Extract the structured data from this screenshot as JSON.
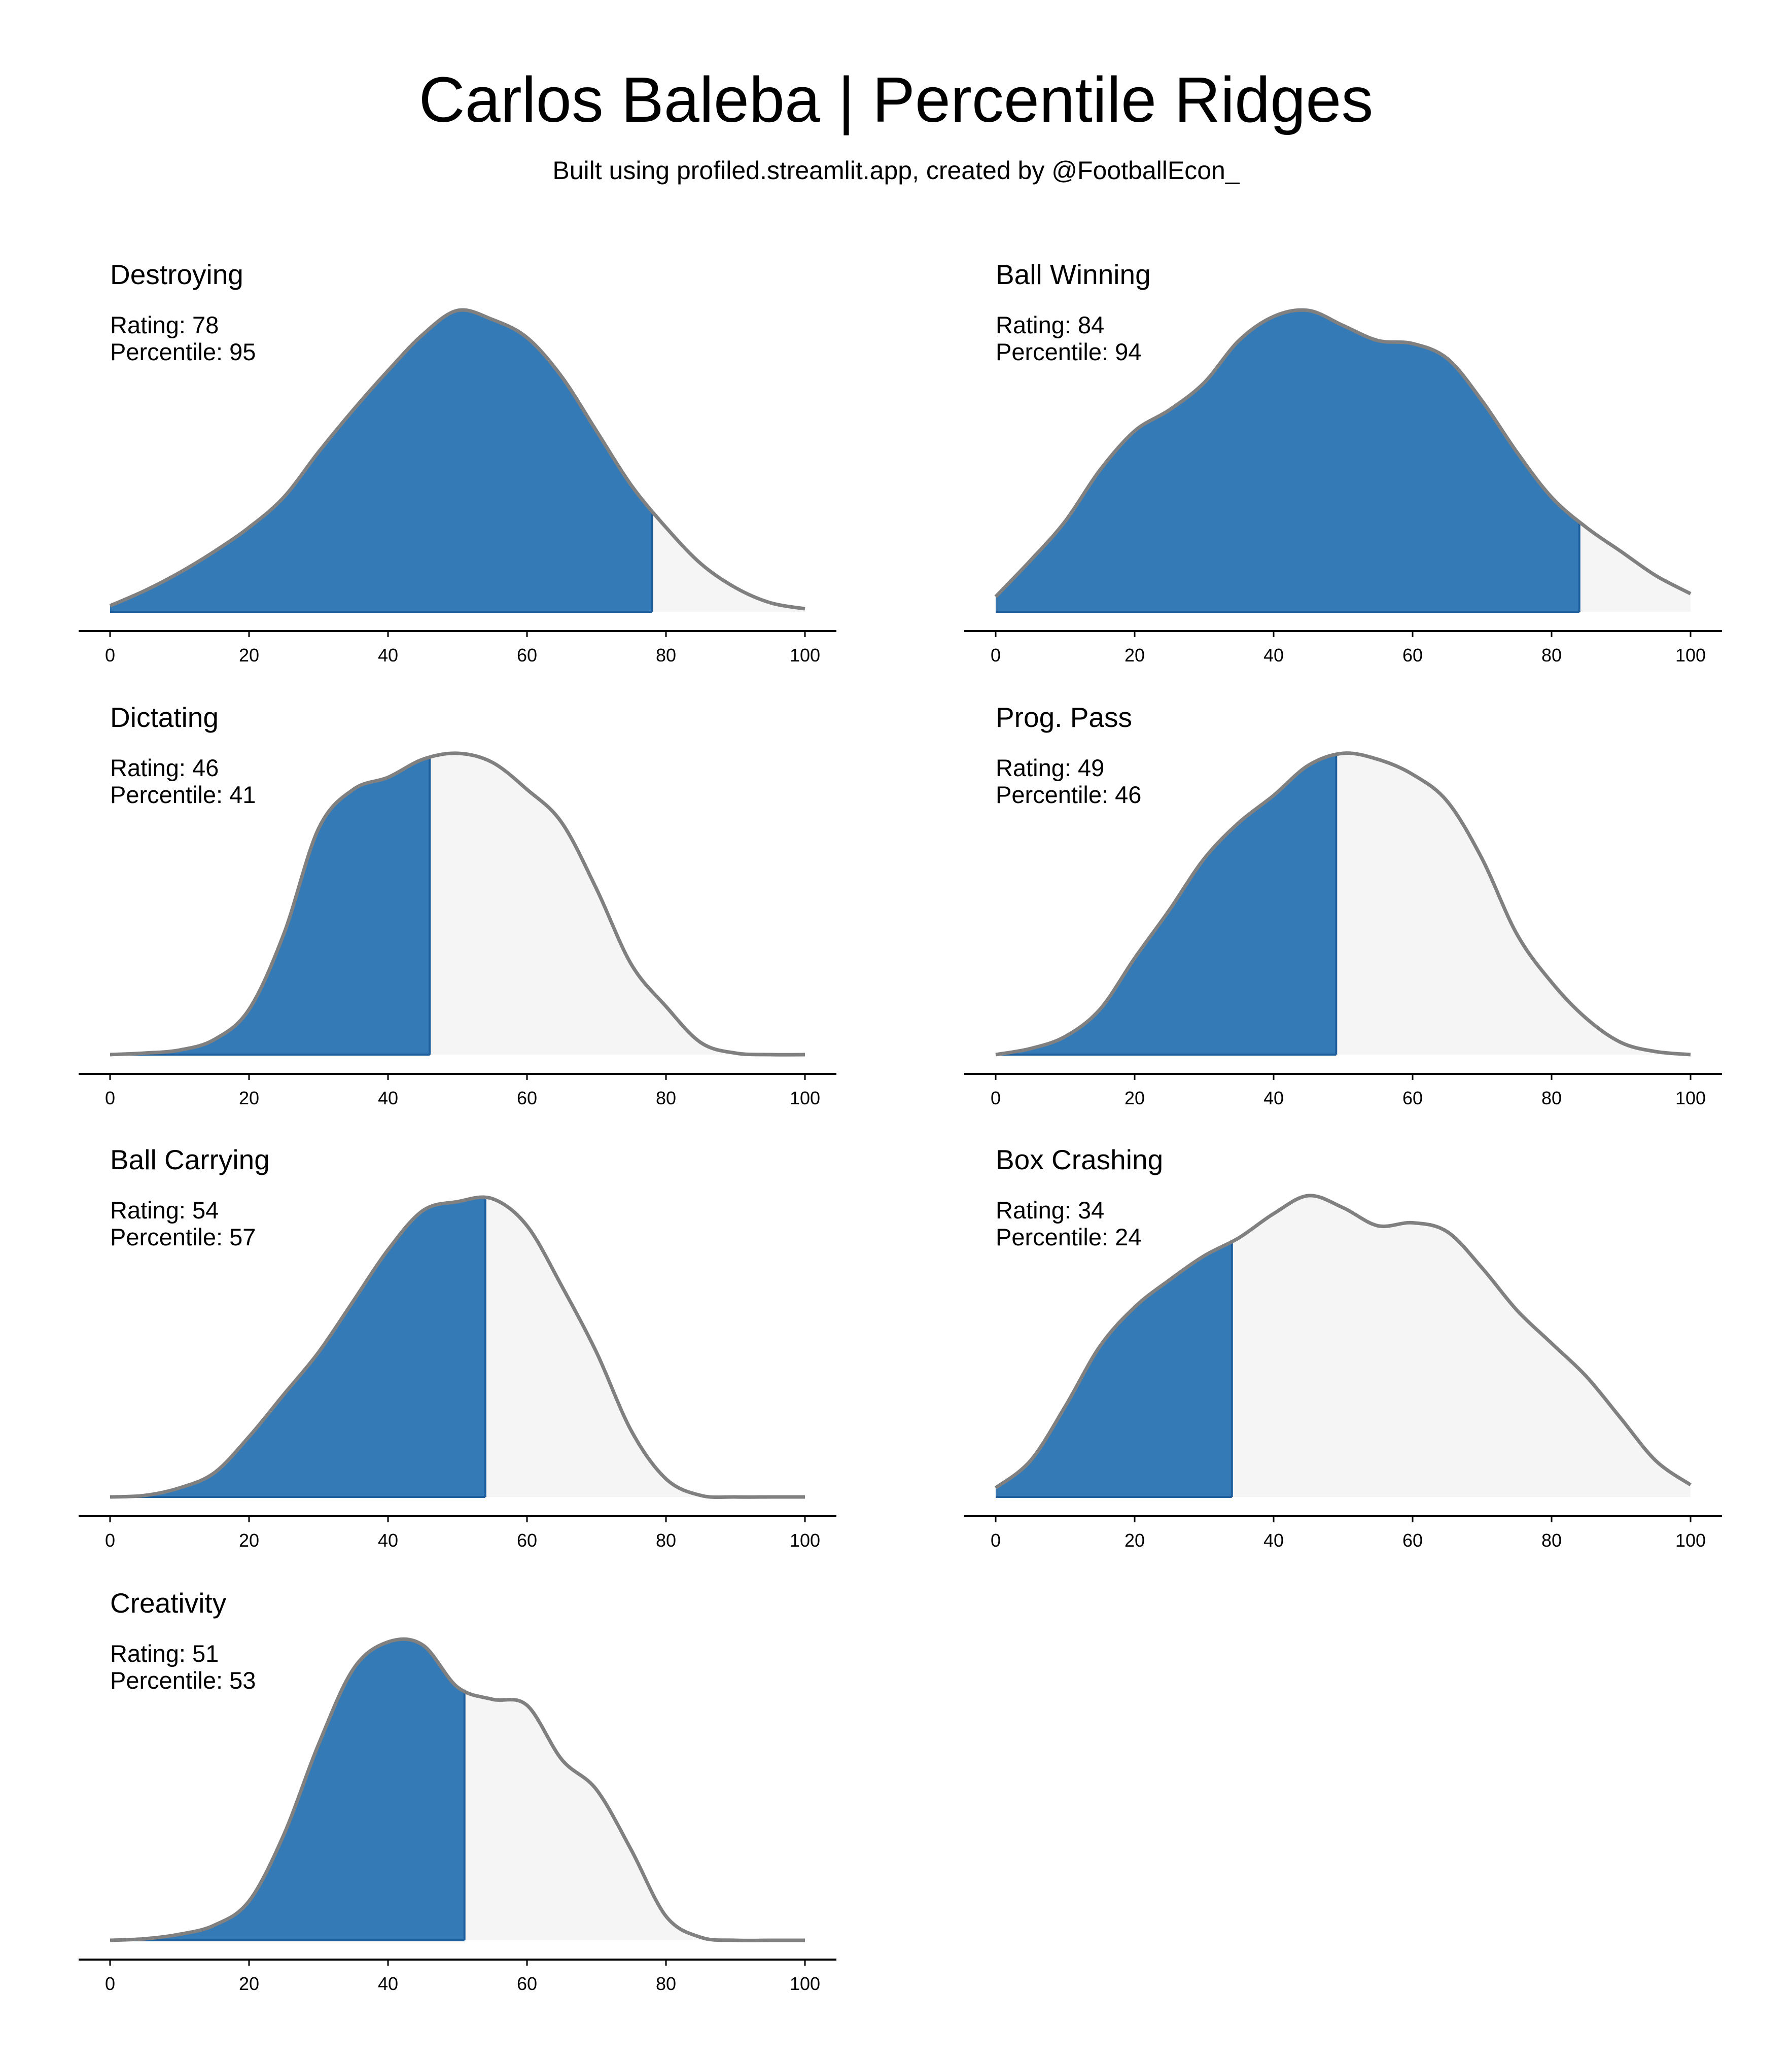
{
  "title": "Carlos Baleba | Percentile Ridges",
  "subtitle": "Built using profiled.streamlit.app, created by @FootballEcon_",
  "colors": {
    "highlight": "#337ab7",
    "highlight_edge": "#1f5f9e",
    "background_fill": "#f5f5f5",
    "curve": "#808080",
    "axis": "#000000"
  },
  "labels": {
    "rating_prefix": "Rating: ",
    "percentile_prefix": "Percentile: "
  },
  "chart_data": [
    {
      "type": "area",
      "title": "Destroying",
      "rating": 78,
      "percentile": 95,
      "xlim": [
        0,
        100
      ],
      "xticks": [
        0,
        20,
        40,
        60,
        80,
        100
      ],
      "x": [
        0,
        5,
        10,
        15,
        20,
        25,
        30,
        35,
        40,
        45,
        50,
        55,
        60,
        65,
        70,
        75,
        80,
        85,
        90,
        95,
        100
      ],
      "density": [
        0.02,
        0.07,
        0.13,
        0.2,
        0.28,
        0.38,
        0.53,
        0.67,
        0.8,
        0.92,
        1.0,
        0.97,
        0.91,
        0.78,
        0.6,
        0.42,
        0.28,
        0.16,
        0.08,
        0.03,
        0.01
      ]
    },
    {
      "type": "area",
      "title": "Ball Winning",
      "rating": 84,
      "percentile": 94,
      "xlim": [
        0,
        100
      ],
      "xticks": [
        0,
        20,
        40,
        60,
        80,
        100
      ],
      "x": [
        0,
        5,
        10,
        15,
        20,
        25,
        30,
        35,
        40,
        45,
        50,
        55,
        60,
        65,
        70,
        75,
        80,
        85,
        90,
        95,
        100
      ],
      "density": [
        0.05,
        0.17,
        0.3,
        0.47,
        0.6,
        0.67,
        0.76,
        0.9,
        0.98,
        1.0,
        0.95,
        0.9,
        0.89,
        0.84,
        0.7,
        0.53,
        0.38,
        0.28,
        0.2,
        0.12,
        0.06
      ]
    },
    {
      "type": "area",
      "title": "Dictating",
      "rating": 46,
      "percentile": 41,
      "xlim": [
        0,
        100
      ],
      "xticks": [
        0,
        20,
        40,
        60,
        80,
        100
      ],
      "x": [
        0,
        5,
        10,
        15,
        20,
        25,
        30,
        35,
        40,
        45,
        50,
        55,
        60,
        65,
        70,
        75,
        80,
        85,
        90,
        95,
        100
      ],
      "density": [
        0.0,
        0.005,
        0.015,
        0.05,
        0.15,
        0.4,
        0.75,
        0.88,
        0.92,
        0.98,
        1.0,
        0.97,
        0.88,
        0.77,
        0.55,
        0.3,
        0.16,
        0.04,
        0.005,
        0.0,
        0.0
      ]
    },
    {
      "type": "area",
      "title": "Prog. Pass",
      "rating": 49,
      "percentile": 46,
      "xlim": [
        0,
        100
      ],
      "xticks": [
        0,
        20,
        40,
        60,
        80,
        100
      ],
      "x": [
        0,
        5,
        10,
        15,
        20,
        25,
        30,
        35,
        40,
        45,
        50,
        55,
        60,
        65,
        70,
        75,
        80,
        85,
        90,
        95,
        100
      ],
      "density": [
        0.0,
        0.02,
        0.06,
        0.15,
        0.32,
        0.48,
        0.65,
        0.77,
        0.86,
        0.96,
        1.0,
        0.98,
        0.93,
        0.84,
        0.65,
        0.4,
        0.24,
        0.12,
        0.04,
        0.01,
        0.0
      ]
    },
    {
      "type": "area",
      "title": "Ball Carrying",
      "rating": 54,
      "percentile": 57,
      "xlim": [
        0,
        100
      ],
      "xticks": [
        0,
        20,
        40,
        60,
        80,
        100
      ],
      "x": [
        0,
        5,
        10,
        15,
        20,
        25,
        30,
        35,
        40,
        45,
        50,
        55,
        60,
        65,
        70,
        75,
        80,
        85,
        90,
        95,
        100
      ],
      "density": [
        0.0,
        0.005,
        0.03,
        0.08,
        0.2,
        0.34,
        0.48,
        0.65,
        0.82,
        0.95,
        0.98,
        0.99,
        0.9,
        0.7,
        0.48,
        0.22,
        0.06,
        0.005,
        0.0,
        0.0,
        0.0
      ]
    },
    {
      "type": "area",
      "title": "Box Crashing",
      "rating": 34,
      "percentile": 24,
      "xlim": [
        0,
        100
      ],
      "xticks": [
        0,
        20,
        40,
        60,
        80,
        100
      ],
      "x": [
        0,
        5,
        10,
        15,
        20,
        25,
        30,
        35,
        40,
        45,
        50,
        55,
        60,
        65,
        70,
        75,
        80,
        85,
        90,
        95,
        100
      ],
      "density": [
        0.03,
        0.12,
        0.3,
        0.5,
        0.63,
        0.72,
        0.8,
        0.86,
        0.94,
        1.0,
        0.96,
        0.9,
        0.91,
        0.88,
        0.76,
        0.62,
        0.51,
        0.4,
        0.26,
        0.12,
        0.04
      ]
    },
    {
      "type": "area",
      "title": "Creativity",
      "rating": 51,
      "percentile": 53,
      "xlim": [
        0,
        100
      ],
      "xticks": [
        0,
        20,
        40,
        60,
        80,
        100
      ],
      "x": [
        0,
        5,
        10,
        15,
        20,
        25,
        30,
        35,
        40,
        45,
        50,
        55,
        60,
        65,
        70,
        75,
        80,
        85,
        90,
        95,
        100
      ],
      "density": [
        0.0,
        0.005,
        0.02,
        0.05,
        0.13,
        0.35,
        0.65,
        0.9,
        0.99,
        0.98,
        0.84,
        0.8,
        0.78,
        0.6,
        0.5,
        0.3,
        0.08,
        0.01,
        0.0,
        0.0,
        0.0
      ]
    }
  ]
}
